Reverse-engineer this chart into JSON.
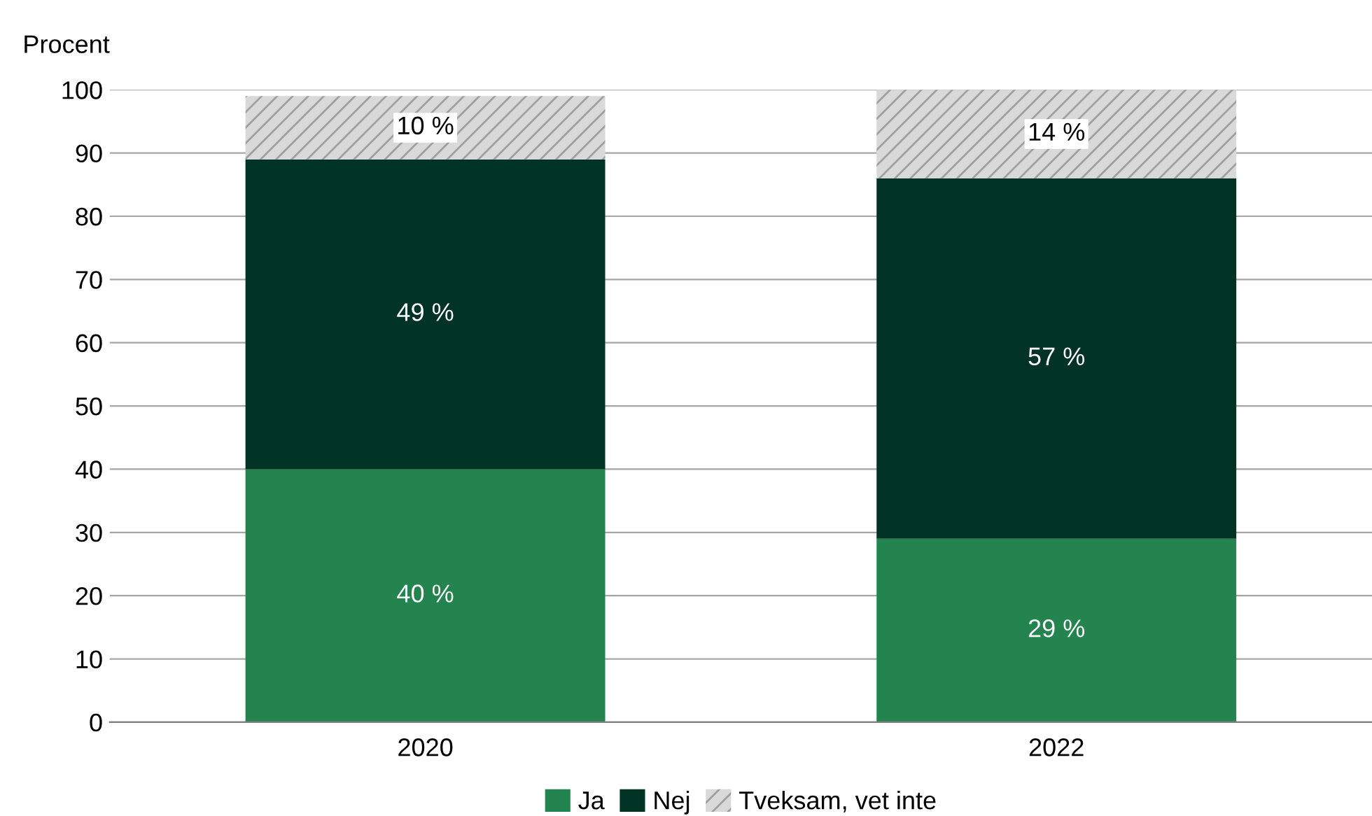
{
  "chart_data": {
    "type": "bar",
    "stacked": true,
    "ylabel": "Procent",
    "categories": [
      "2020",
      "2022"
    ],
    "series": [
      {
        "name": "Ja",
        "color": "#23844f",
        "values": [
          40,
          29
        ],
        "value_labels": [
          "40 %",
          "29 %"
        ]
      },
      {
        "name": "Nej",
        "color": "#003324",
        "values": [
          49,
          57
        ],
        "value_labels": [
          "49 %",
          "57 %"
        ]
      },
      {
        "name": "Tveksam, vet inte",
        "color": "#d9d9d9",
        "values": [
          10,
          14
        ],
        "value_labels": [
          "10 %",
          "14 %"
        ]
      }
    ],
    "ylim": [
      0,
      100
    ],
    "yticks": [
      0,
      10,
      20,
      30,
      40,
      50,
      60,
      70,
      80,
      90,
      100
    ],
    "grid": "y",
    "legend": "bottom"
  }
}
